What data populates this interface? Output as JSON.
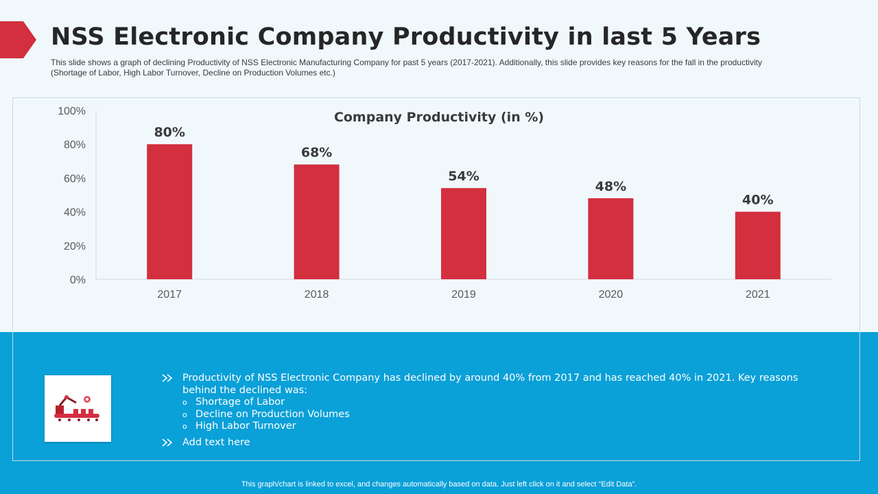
{
  "header": {
    "title": "NSS Electronic Company Productivity in last 5 Years",
    "subtitle": "This slide shows a graph of declining Productivity of NSS Electronic Manufacturing Company for past 5 years (2017-2021). Additionally, this slide provides key reasons for the fall in the productivity (Shortage of Labor, High Labor Turnover, Decline on Production Volumes etc.)"
  },
  "colors": {
    "accent_red": "#d32f3f",
    "band_blue": "#0aa0d8",
    "bar_fill": "#d32f3f"
  },
  "chart_data": {
    "type": "bar",
    "title": "Company Productivity (in %)",
    "categories": [
      "2017",
      "2018",
      "2019",
      "2020",
      "2021"
    ],
    "values": [
      80,
      68,
      54,
      48,
      40
    ],
    "data_labels": [
      "80%",
      "68%",
      "54%",
      "48%",
      "40%"
    ],
    "y_ticks": [
      "0%",
      "20%",
      "40%",
      "60%",
      "80%",
      "100%"
    ],
    "ylim": [
      0,
      100
    ],
    "grid": false,
    "legend": "none"
  },
  "notes": {
    "icon": "robotic-arm-assembly-icon",
    "main": "Productivity of NSS Electronic Company has declined by around 40% from 2017 and has reached 40% in 2021. Key reasons behind the declined was:",
    "reasons": [
      "Shortage of Labor",
      "Decline on Production Volumes",
      "High Labor Turnover"
    ],
    "bullet_glyph": "o",
    "add_text": "Add text here"
  },
  "footer": {
    "text": "This graph/chart is linked to excel, and changes automatically based on data. Just left click on it and select “Edit Data”."
  }
}
